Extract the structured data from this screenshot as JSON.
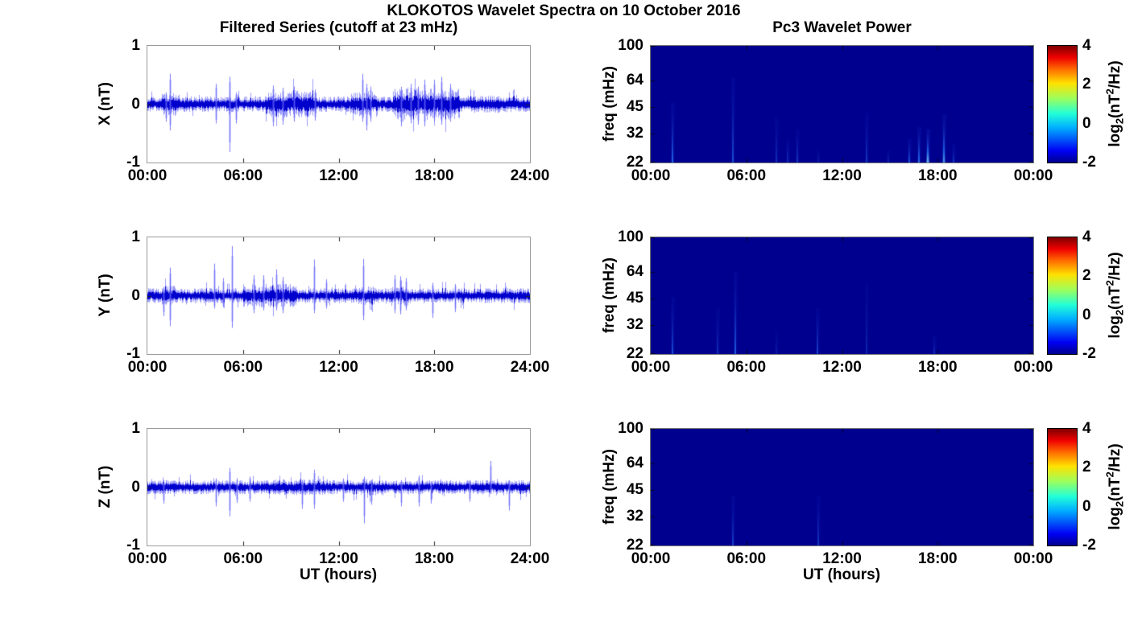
{
  "figure": {
    "title": "KLOKOTOS Wavelet Spectra on 10 October 2016",
    "left_column_title": "Filtered Series (cutoff at 23 mHz)",
    "right_column_title": "Pc3 Wavelet Power",
    "x_axis_label": "UT (hours)"
  },
  "colors": {
    "series_line": "#0000cd",
    "series_halo": "rgba(60,60,245,0.5)",
    "spike_line": "rgba(90,90,250,0.8)",
    "spike_halo": "rgba(120,120,250,0.3)",
    "heatmap_background": "#00008f",
    "streak_blue": "#1e5ae1",
    "streak_cyan": "#7fd8ee",
    "axis_box": "#9a9a9a",
    "tick_mark": "#222222",
    "text": "#000000",
    "jet_stops": [
      "#00008f",
      "#0000f4",
      "#00b0ff",
      "#22ffd8",
      "#9dff5c",
      "#ffe100",
      "#ff6b00",
      "#ef0000",
      "#7f0000"
    ],
    "jet_fracs": [
      0,
      0.1,
      0.3,
      0.42,
      0.55,
      0.68,
      0.8,
      0.9,
      1.0
    ]
  },
  "colorbar": {
    "clim": [
      -2,
      4
    ],
    "ticks": [
      4,
      2,
      0,
      -2
    ],
    "label_parts": {
      "pre": "log",
      "sub": "2",
      "mid": "(nT",
      "sup": "2",
      "post": "/Hz)"
    }
  },
  "chart_data": [
    {
      "type": "line",
      "id": "x-filtered-series",
      "ylabel": "X (nT)",
      "ylim": [
        -1,
        1
      ],
      "yticks": [
        1,
        0,
        -1
      ],
      "x_range_hours": [
        0,
        24
      ],
      "xtick_labels": [
        "00:00",
        "06:00",
        "12:00",
        "18:00",
        "24:00"
      ],
      "noise_base_nT": 0.05,
      "burst_format": [
        "start_hour",
        "end_hour",
        "amplitude_nT"
      ],
      "bursts": [
        [
          0.9,
          1.8,
          0.075
        ],
        [
          7.4,
          10.6,
          0.085
        ],
        [
          12.7,
          14.4,
          0.08
        ],
        [
          15.4,
          19.6,
          0.1
        ],
        [
          20.5,
          24,
          0.055
        ]
      ],
      "spike_format": [
        "hour",
        "max_nT",
        "min_nT"
      ],
      "spikes": [
        [
          1.15,
          0.2,
          -0.3
        ],
        [
          1.4,
          0.52,
          -0.45
        ],
        [
          4.3,
          0.35,
          -0.33
        ],
        [
          5.15,
          0.47,
          -0.82
        ],
        [
          5.55,
          0.2,
          -0.33
        ],
        [
          7.9,
          0.32,
          -0.38
        ],
        [
          8.5,
          0.28,
          -0.35
        ],
        [
          9.2,
          0.3,
          -0.3
        ],
        [
          10.5,
          0.25,
          -0.28
        ],
        [
          13.5,
          0.52,
          -0.3
        ],
        [
          13.75,
          0.35,
          -0.45
        ],
        [
          14.0,
          0.3,
          -0.3
        ],
        [
          15.9,
          0.3,
          -0.38
        ],
        [
          16.5,
          0.35,
          -0.33
        ],
        [
          17.0,
          0.3,
          -0.35
        ],
        [
          17.4,
          0.42,
          -0.38
        ],
        [
          18.0,
          0.42,
          -0.3
        ],
        [
          18.45,
          0.47,
          -0.35
        ],
        [
          19.0,
          0.35,
          -0.3
        ]
      ]
    },
    {
      "type": "line",
      "id": "y-filtered-series",
      "ylabel": "Y (nT)",
      "ylim": [
        -1,
        1
      ],
      "yticks": [
        1,
        0,
        -1
      ],
      "x_range_hours": [
        0,
        24
      ],
      "xtick_labels": [
        "00:00",
        "06:00",
        "12:00",
        "18:00",
        "24:00"
      ],
      "noise_base_nT": 0.048,
      "burst_format": [
        "start_hour",
        "end_hour",
        "amplitude_nT"
      ],
      "bursts": [
        [
          0.9,
          1.8,
          0.065
        ],
        [
          6.0,
          9.3,
          0.075
        ],
        [
          13.2,
          14.3,
          0.06
        ],
        [
          15.3,
          16.4,
          0.065
        ]
      ],
      "spike_format": [
        "hour",
        "max_nT",
        "min_nT"
      ],
      "spikes": [
        [
          1.0,
          0.15,
          -0.35
        ],
        [
          1.4,
          0.48,
          -0.52
        ],
        [
          4.2,
          0.55,
          -0.22
        ],
        [
          4.75,
          0.3,
          -0.2
        ],
        [
          5.3,
          0.85,
          -0.55
        ],
        [
          6.65,
          0.35,
          -0.3
        ],
        [
          7.3,
          0.35,
          -0.25
        ],
        [
          8.1,
          0.45,
          -0.25
        ],
        [
          8.5,
          0.32,
          -0.3
        ],
        [
          10.45,
          0.62,
          -0.3
        ],
        [
          11.2,
          0.28,
          -0.22
        ],
        [
          13.55,
          0.63,
          -0.42
        ],
        [
          15.5,
          0.35,
          -0.3
        ],
        [
          15.85,
          0.33,
          -0.32
        ],
        [
          16.2,
          0.3,
          -0.25
        ],
        [
          17.9,
          0.22,
          -0.38
        ],
        [
          19.3,
          0.2,
          -0.28
        ]
      ]
    },
    {
      "type": "line",
      "id": "z-filtered-series",
      "ylabel": "Z (nT)",
      "ylim": [
        -1,
        1
      ],
      "yticks": [
        1,
        0,
        -1
      ],
      "x_range_hours": [
        0,
        24
      ],
      "xtick_labels": [
        "00:00",
        "06:00",
        "12:00",
        "18:00",
        "24:00"
      ],
      "noise_base_nT": 0.045,
      "burst_format": [
        "start_hour",
        "end_hour",
        "amplitude_nT"
      ],
      "bursts": [
        [
          8.0,
          11.0,
          0.05
        ],
        [
          13.2,
          14.3,
          0.052
        ]
      ],
      "spike_format": [
        "hour",
        "max_nT",
        "min_nT"
      ],
      "spikes": [
        [
          1.0,
          0.12,
          -0.28
        ],
        [
          4.3,
          0.15,
          -0.33
        ],
        [
          5.15,
          0.33,
          -0.5
        ],
        [
          5.6,
          0.15,
          -0.27
        ],
        [
          6.4,
          0.18,
          -0.25
        ],
        [
          9.7,
          0.12,
          -0.37
        ],
        [
          10.45,
          0.3,
          -0.37
        ],
        [
          12.3,
          0.15,
          -0.25
        ],
        [
          13.6,
          0.18,
          -0.62
        ],
        [
          14.05,
          0.12,
          -0.3
        ],
        [
          15.9,
          0.12,
          -0.33
        ],
        [
          17.05,
          0.2,
          -0.33
        ],
        [
          17.8,
          0.1,
          -0.28
        ],
        [
          20.2,
          0.12,
          -0.25
        ],
        [
          21.5,
          0.45,
          -0.12
        ],
        [
          22.7,
          0.12,
          -0.4
        ]
      ]
    },
    {
      "type": "heatmap",
      "id": "x-wavelet-power",
      "ylabel": "freq (mHz)",
      "freq_lim_mHz": [
        22,
        100
      ],
      "yticks": [
        100,
        64,
        45,
        32,
        22
      ],
      "x_range_hours": [
        0,
        24
      ],
      "xtick_labels": [
        "00:00",
        "06:00",
        "12:00",
        "18:00",
        "00:00"
      ],
      "clim_log2": [
        -2,
        4
      ],
      "background_value": -2,
      "event_format": [
        "hour",
        "top_freq_mHz",
        "relative_intensity"
      ],
      "events": [
        [
          1.35,
          48,
          0.55
        ],
        [
          5.15,
          66,
          0.45
        ],
        [
          7.9,
          40,
          0.3
        ],
        [
          8.6,
          30,
          0.3
        ],
        [
          9.2,
          34,
          0.35
        ],
        [
          10.5,
          26,
          0.2
        ],
        [
          13.55,
          42,
          0.35
        ],
        [
          14.9,
          26,
          0.25
        ],
        [
          16.2,
          30,
          0.5
        ],
        [
          16.8,
          35,
          0.6
        ],
        [
          17.4,
          34,
          0.9
        ],
        [
          18.4,
          41,
          0.75
        ],
        [
          19.0,
          28,
          0.35
        ]
      ]
    },
    {
      "type": "heatmap",
      "id": "y-wavelet-power",
      "ylabel": "freq (mHz)",
      "freq_lim_mHz": [
        22,
        100
      ],
      "yticks": [
        100,
        64,
        45,
        32,
        22
      ],
      "x_range_hours": [
        0,
        24
      ],
      "xtick_labels": [
        "00:00",
        "06:00",
        "12:00",
        "18:00",
        "00:00"
      ],
      "clim_log2": [
        -2,
        4
      ],
      "background_value": -2,
      "event_format": [
        "hour",
        "top_freq_mHz",
        "relative_intensity"
      ],
      "events": [
        [
          1.35,
          46,
          0.45
        ],
        [
          4.2,
          40,
          0.3
        ],
        [
          5.3,
          64,
          0.5
        ],
        [
          7.9,
          30,
          0.2
        ],
        [
          10.45,
          40,
          0.4
        ],
        [
          13.55,
          55,
          0.25
        ],
        [
          17.8,
          28,
          0.3
        ]
      ]
    },
    {
      "type": "heatmap",
      "id": "z-wavelet-power",
      "ylabel": "freq (mHz)",
      "freq_lim_mHz": [
        22,
        100
      ],
      "yticks": [
        100,
        64,
        45,
        32,
        22
      ],
      "x_range_hours": [
        0,
        24
      ],
      "xtick_labels": [
        "00:00",
        "06:00",
        "12:00",
        "18:00",
        "00:00"
      ],
      "clim_log2": [
        -2,
        4
      ],
      "background_value": -2,
      "event_format": [
        "hour",
        "top_freq_mHz",
        "relative_intensity"
      ],
      "events": [
        [
          5.15,
          42,
          0.4
        ],
        [
          10.5,
          42,
          0.35
        ]
      ]
    }
  ]
}
